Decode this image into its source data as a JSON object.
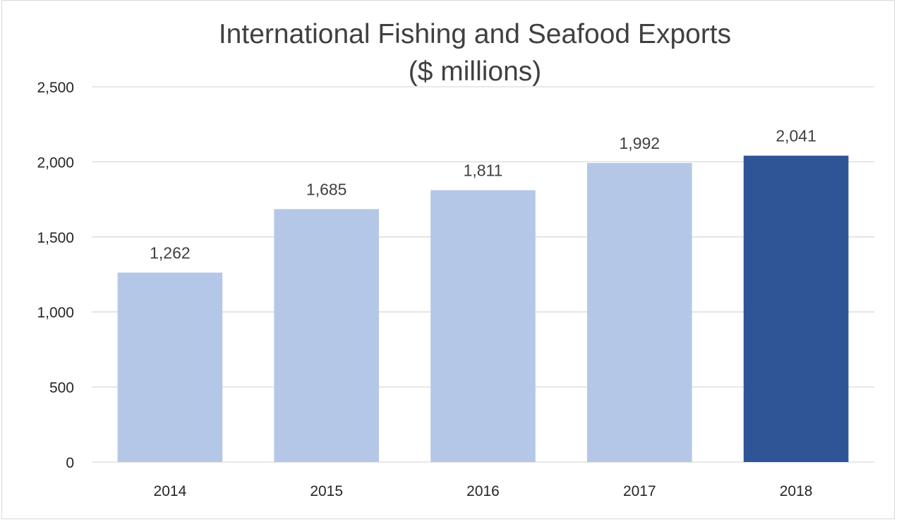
{
  "chart_data": {
    "type": "bar",
    "title": "International Fishing and Seafood Exports",
    "subtitle": "($ millions)",
    "categories": [
      "2014",
      "2015",
      "2016",
      "2017",
      "2018"
    ],
    "values": [
      1262,
      1685,
      1811,
      1992,
      2041
    ],
    "value_labels": [
      "1,262",
      "1,685",
      "1,811",
      "1,992",
      "2,041"
    ],
    "ylim": [
      0,
      2500
    ],
    "yticks": [
      0,
      500,
      1000,
      1500,
      2000,
      2500
    ],
    "ytick_labels": [
      "0",
      "500",
      "1,000",
      "1,500",
      "2,000",
      "2,500"
    ],
    "grid": true,
    "legend": "none",
    "colors": {
      "bar": "#b4c7e7",
      "highlight_bar": "#2f5597",
      "gridline": "#d9d9d9",
      "text": "#404040"
    },
    "highlight_index": 4
  }
}
